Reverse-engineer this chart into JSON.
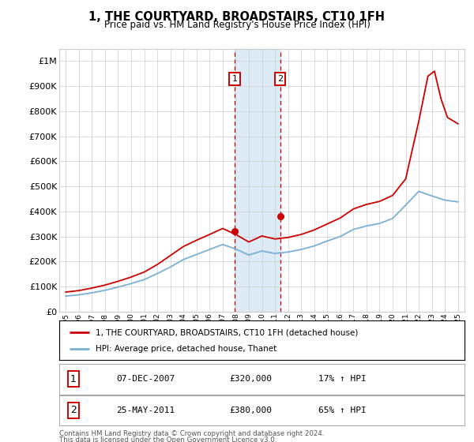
{
  "title": "1, THE COURTYARD, BROADSTAIRS, CT10 1FH",
  "subtitle": "Price paid vs. HM Land Registry's House Price Index (HPI)",
  "legend_line1": "1, THE COURTYARD, BROADSTAIRS, CT10 1FH (detached house)",
  "legend_line2": "HPI: Average price, detached house, Thanet",
  "footnote1": "Contains HM Land Registry data © Crown copyright and database right 2024.",
  "footnote2": "This data is licensed under the Open Government Licence v3.0.",
  "sale1_date": "07-DEC-2007",
  "sale1_price": "£320,000",
  "sale1_hpi": "17% ↑ HPI",
  "sale2_date": "25-MAY-2011",
  "sale2_price": "£380,000",
  "sale2_hpi": "65% ↑ HPI",
  "sale1_year": 2007.92,
  "sale1_value": 320000,
  "sale2_year": 2011.39,
  "sale2_value": 380000,
  "red_line_color": "#cc0000",
  "blue_line_color": "#7ab0d4",
  "background_color": "#ffffff",
  "grid_color": "#cccccc",
  "shade_color": "#d6e8f5",
  "ylim_min": 0,
  "ylim_max": 1050000,
  "xlim_min": 1994.5,
  "xlim_max": 2025.5,
  "years_hpi": [
    1995,
    1996,
    1997,
    1998,
    1999,
    2000,
    2001,
    2002,
    2003,
    2004,
    2005,
    2006,
    2007,
    2008,
    2009,
    2010,
    2011,
    2012,
    2013,
    2014,
    2015,
    2016,
    2017,
    2018,
    2019,
    2020,
    2021,
    2022,
    2023,
    2024,
    2025
  ],
  "hpi_values": [
    62000,
    67000,
    75000,
    85000,
    98000,
    112000,
    128000,
    152000,
    178000,
    208000,
    228000,
    248000,
    268000,
    250000,
    226000,
    242000,
    232000,
    238000,
    248000,
    262000,
    282000,
    300000,
    328000,
    342000,
    352000,
    372000,
    425000,
    480000,
    462000,
    445000,
    438000
  ],
  "years_red": [
    1995,
    1996,
    1997,
    1998,
    1999,
    2000,
    2001,
    2002,
    2003,
    2004,
    2005,
    2006,
    2007,
    2008,
    2009,
    2010,
    2011,
    2012,
    2013,
    2014,
    2015,
    2016,
    2017,
    2018,
    2019,
    2020,
    2021,
    2022,
    2022.7,
    2023.2,
    2023.7,
    2024.2,
    2025
  ],
  "red_values": [
    78000,
    84000,
    94000,
    106000,
    121000,
    138000,
    158000,
    188000,
    224000,
    260000,
    285000,
    308000,
    332000,
    308000,
    278000,
    302000,
    290000,
    296000,
    308000,
    326000,
    350000,
    374000,
    410000,
    428000,
    440000,
    464000,
    530000,
    760000,
    940000,
    960000,
    850000,
    775000,
    750000
  ],
  "yticks": [
    0,
    100000,
    200000,
    300000,
    400000,
    500000,
    600000,
    700000,
    800000,
    900000,
    1000000
  ],
  "ytick_labels": [
    "£0",
    "£100K",
    "£200K",
    "£300K",
    "£400K",
    "£500K",
    "£600K",
    "£700K",
    "£800K",
    "£900K",
    "£1M"
  ]
}
